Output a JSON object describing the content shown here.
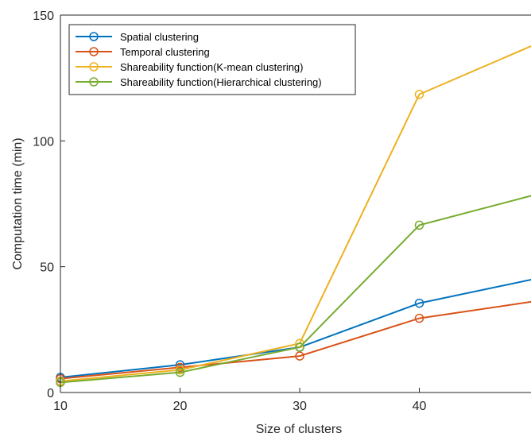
{
  "chart_data": {
    "type": "line",
    "title": "",
    "xlabel": "Size of clusters",
    "ylabel": "Computation time (min)",
    "x": [
      10,
      20,
      30,
      40,
      50
    ],
    "xlim": [
      10,
      50
    ],
    "ylim": [
      0,
      150
    ],
    "xticks": [
      "10",
      "20",
      "30",
      "40"
    ],
    "yticks": [
      "0",
      "50",
      "100",
      "150"
    ],
    "grid": false,
    "legend_position": "top-left",
    "series": [
      {
        "name": "Spatial clustering",
        "color": "#0072BD",
        "marker": "circle",
        "values": [
          6,
          11,
          18,
          35.5,
          45.5
        ]
      },
      {
        "name": "Temporal clustering",
        "color": "#D95319",
        "marker": "circle",
        "values": [
          5.5,
          10,
          14.5,
          29.5,
          36.5
        ]
      },
      {
        "name": "Shareability function(K-mean clustering)",
        "color": "#EDB120",
        "marker": "circle",
        "values": [
          4.5,
          9,
          19.5,
          118.5,
          139
        ]
      },
      {
        "name": "Shareability function(Hierarchical clustering)",
        "color": "#77AC30",
        "marker": "circle",
        "values": [
          4,
          8,
          18,
          66.5,
          79
        ]
      }
    ]
  }
}
